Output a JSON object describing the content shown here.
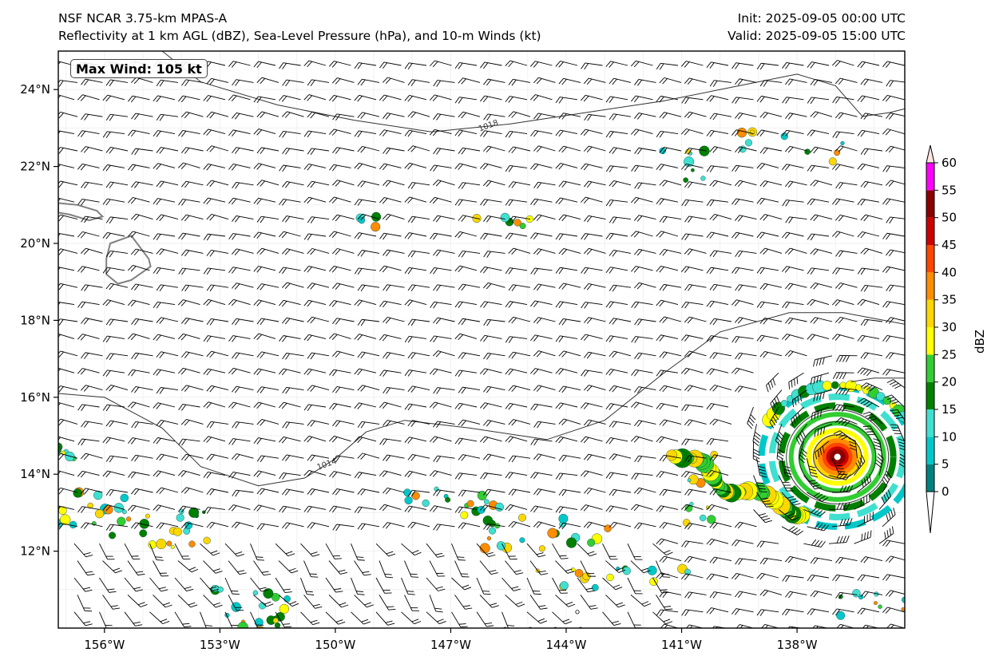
{
  "header": {
    "title_left_1": "NSF NCAR 3.75-km MPAS-A",
    "title_left_2": "Reflectivity at 1 km AGL (dBZ), Sea-Level Pressure (hPa), and 10-m Winds (kt)",
    "title_right_1": "Init: 2025-09-05 00:00 UTC",
    "title_right_2": "Valid: 2025-09-05 15:00 UTC"
  },
  "max_wind_label": "Max Wind: 105 kt",
  "map": {
    "lon_range": [
      -157.2,
      -135.2
    ],
    "lat_range": [
      10.0,
      25.0
    ],
    "lon_ticks": [
      {
        "value": -156,
        "label": "156°W"
      },
      {
        "value": -153,
        "label": "153°W"
      },
      {
        "value": -150,
        "label": "150°W"
      },
      {
        "value": -147,
        "label": "147°W"
      },
      {
        "value": -144,
        "label": "144°W"
      },
      {
        "value": -141,
        "label": "141°W"
      },
      {
        "value": -138,
        "label": "138°W"
      }
    ],
    "lat_ticks": [
      {
        "value": 12,
        "label": "12°N"
      },
      {
        "value": 14,
        "label": "14°N"
      },
      {
        "value": 16,
        "label": "16°N"
      },
      {
        "value": 18,
        "label": "18°N"
      },
      {
        "value": 20,
        "label": "20°N"
      },
      {
        "value": 22,
        "label": "22°N"
      },
      {
        "value": 24,
        "label": "24°N"
      }
    ],
    "isobars": [
      {
        "label": "1018",
        "points": [
          [
            -154.5,
            25
          ],
          [
            -153.5,
            24.2
          ],
          [
            -151.5,
            23.6
          ],
          [
            -149.5,
            23.2
          ],
          [
            -147.5,
            22.9
          ],
          [
            -145.5,
            23.1
          ],
          [
            -143.5,
            23.4
          ],
          [
            -141.5,
            23.7
          ],
          [
            -139.5,
            24.1
          ],
          [
            -138.0,
            24.4
          ],
          [
            -137.0,
            24.1
          ],
          [
            -136.3,
            23.3
          ],
          [
            -135.6,
            23.4
          ],
          [
            -135.2,
            23.5
          ]
        ],
        "label_at": [
          -146.0,
          23.0
        ]
      },
      {
        "label": "1014",
        "points": [
          [
            -157.2,
            16.1
          ],
          [
            -156.0,
            16.0
          ],
          [
            -154.5,
            15.2
          ],
          [
            -153.5,
            14.2
          ],
          [
            -152.0,
            13.7
          ],
          [
            -150.8,
            13.9
          ],
          [
            -150.0,
            14.4
          ],
          [
            -149.2,
            15.1
          ],
          [
            -148.2,
            15.4
          ],
          [
            -146.5,
            15.2
          ],
          [
            -144.5,
            14.9
          ],
          [
            -143.0,
            15.4
          ],
          [
            -141.5,
            16.6
          ],
          [
            -140.0,
            17.7
          ],
          [
            -138.2,
            18.2
          ],
          [
            -136.8,
            18.2
          ],
          [
            -135.2,
            17.9
          ]
        ],
        "label_at": [
          -150.2,
          14.2
        ]
      },
      {
        "label": "",
        "points": [
          [
            -135.2,
            16.5
          ],
          [
            -136.0,
            16.5
          ],
          [
            -136.6,
            16.4
          ]
        ],
        "label_at": null
      }
    ],
    "cyclone_center": [
      -136.95,
      14.45
    ],
    "islands": [
      {
        "name": "hawaii",
        "points": [
          [
            -155.85,
            20.0
          ],
          [
            -155.3,
            20.2
          ],
          [
            -154.85,
            19.6
          ],
          [
            -154.8,
            19.4
          ],
          [
            -155.3,
            19.05
          ],
          [
            -155.65,
            18.95
          ],
          [
            -155.95,
            19.2
          ],
          [
            -155.95,
            19.6
          ]
        ]
      },
      {
        "name": "maui",
        "points": [
          [
            -157.2,
            21.05
          ],
          [
            -156.7,
            21.0
          ],
          [
            -156.2,
            20.85
          ],
          [
            -156.05,
            20.7
          ],
          [
            -156.4,
            20.6
          ],
          [
            -156.9,
            20.75
          ],
          [
            -157.2,
            20.8
          ]
        ]
      }
    ]
  },
  "colorbar": {
    "label": "dBZ",
    "ticks": [
      "0",
      "5",
      "10",
      "15",
      "20",
      "25",
      "30",
      "35",
      "40",
      "45",
      "50",
      "55",
      "60"
    ],
    "colors": [
      "#008080",
      "#00c8c8",
      "#40e0d0",
      "#008000",
      "#32cd32",
      "#ffff00",
      "#ffd700",
      "#ff8c00",
      "#ff4500",
      "#cc0000",
      "#8b0000",
      "#ff00ff",
      "#ffe4e1"
    ]
  }
}
